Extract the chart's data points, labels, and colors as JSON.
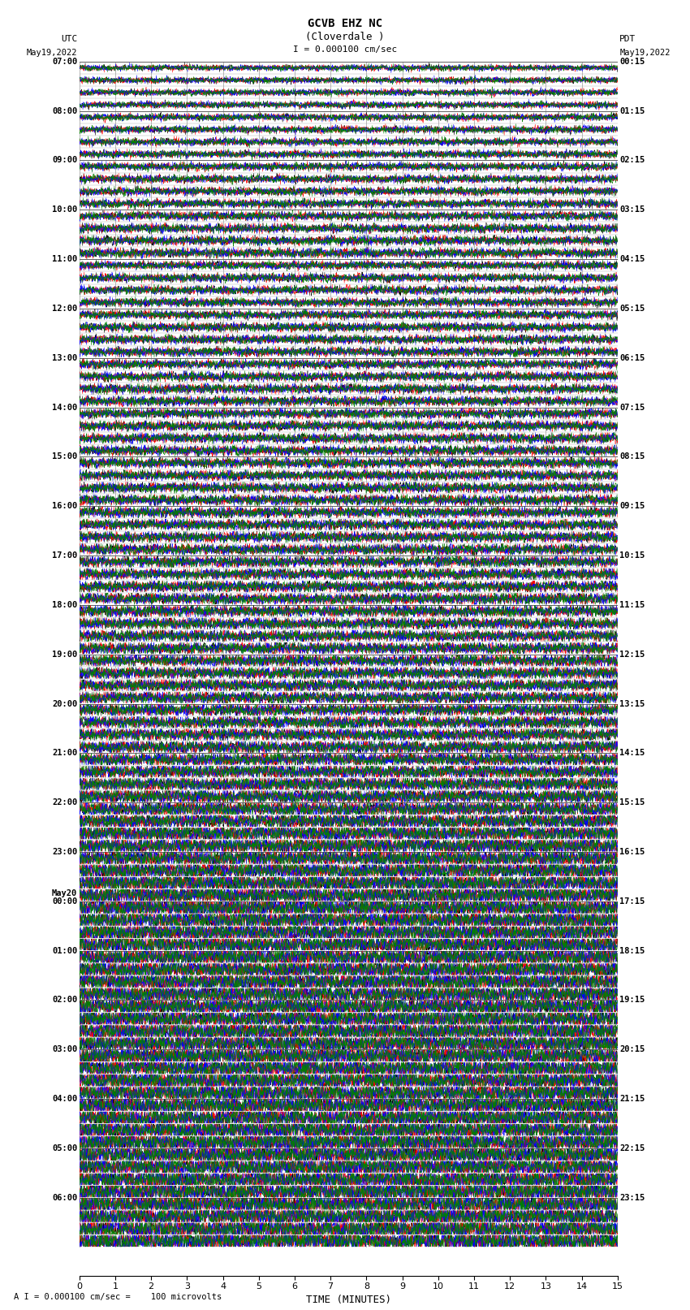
{
  "title_line1": "GCVB EHZ NC",
  "title_line2": "(Cloverdale )",
  "scale_text": "I = 0.000100 cm/sec",
  "footer_text": "A I = 0.000100 cm/sec =    100 microvolts",
  "xlabel": "TIME (MINUTES)",
  "utc_times_labeled": [
    "07:00",
    "08:00",
    "09:00",
    "10:00",
    "11:00",
    "12:00",
    "13:00",
    "14:00",
    "15:00",
    "16:00",
    "17:00",
    "18:00",
    "19:00",
    "20:00",
    "21:00",
    "22:00",
    "23:00",
    "May20\n00:00",
    "01:00",
    "02:00",
    "03:00",
    "04:00",
    "05:00",
    "06:00"
  ],
  "pdt_times_labeled": [
    "00:15",
    "01:15",
    "02:15",
    "03:15",
    "04:15",
    "05:15",
    "06:15",
    "07:15",
    "08:15",
    "09:15",
    "10:15",
    "11:15",
    "12:15",
    "13:15",
    "14:15",
    "15:15",
    "16:15",
    "17:15",
    "18:15",
    "19:15",
    "20:15",
    "21:15",
    "22:15",
    "23:15"
  ],
  "num_rows": 96,
  "colors": [
    "black",
    "red",
    "blue",
    "green"
  ],
  "fig_width": 8.5,
  "fig_height": 16.13,
  "dpi": 100,
  "bg_color": "#ffffff",
  "grid_color": "#808080",
  "time_minutes": 15
}
